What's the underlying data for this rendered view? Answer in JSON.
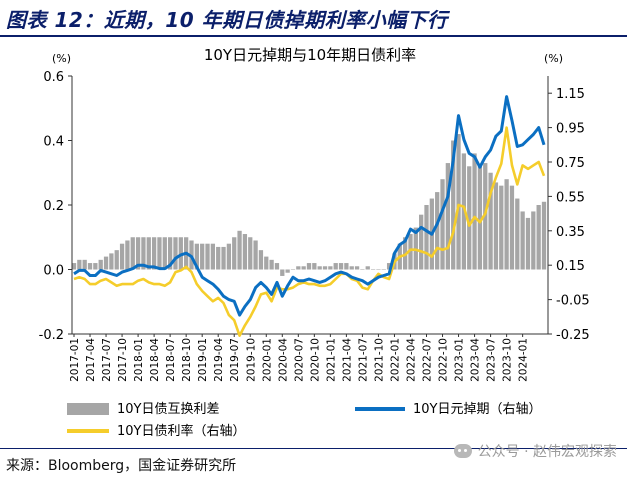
{
  "page": {
    "figure_title": "图表 12：近期，10 年期日债掉期利率小幅下行",
    "source_text": "来源：Bloomberg，国金证券研究所",
    "watermark_text": "公众号 · 赵伟宏观探索"
  },
  "colors": {
    "title": "#0b1f6a",
    "bar": "#a6a6a6",
    "swap": "#0b6fc2",
    "yield": "#f5cd2b"
  },
  "chart_data": {
    "type": "bar",
    "title": "10Y日元掉期与10年期日债利率",
    "y_left_unit": "(%)",
    "y_right_unit": "(%)",
    "y_left_range": [
      -0.2,
      0.6
    ],
    "y_left_ticks": [
      "0.6",
      "0.4",
      "0.2",
      "0.0",
      "-0.2"
    ],
    "y_left_tick_values": [
      0.6,
      0.4,
      0.2,
      0.0,
      -0.2
    ],
    "y_right_range": [
      -0.25,
      1.25
    ],
    "y_right_ticks": [
      "1.15",
      "0.95",
      "0.75",
      "0.55",
      "0.35",
      "0.15",
      "-0.05",
      "-0.25"
    ],
    "y_right_tick_values": [
      1.15,
      0.95,
      0.75,
      0.55,
      0.35,
      0.15,
      -0.05,
      -0.25
    ],
    "x_tick_labels": [
      "2017-01",
      "2017-04",
      "2017-07",
      "2017-10",
      "2018-01",
      "2018-04",
      "2018-07",
      "2018-10",
      "2019-01",
      "2019-04",
      "2019-07",
      "2019-10",
      "2020-01",
      "2020-04",
      "2020-07",
      "2020-10",
      "2021-01",
      "2021-04",
      "2021-07",
      "2021-10",
      "2022-01",
      "2022-04",
      "2022-07",
      "2022-10",
      "2023-01",
      "2023-04",
      "2023-07",
      "2023-10",
      "2024-01"
    ],
    "grid": false,
    "legend_position": "bottom",
    "x_months": [
      "2017-01",
      "2017-02",
      "2017-03",
      "2017-04",
      "2017-05",
      "2017-06",
      "2017-07",
      "2017-08",
      "2017-09",
      "2017-10",
      "2017-11",
      "2017-12",
      "2018-01",
      "2018-02",
      "2018-03",
      "2018-04",
      "2018-05",
      "2018-06",
      "2018-07",
      "2018-08",
      "2018-09",
      "2018-10",
      "2018-11",
      "2018-12",
      "2019-01",
      "2019-02",
      "2019-03",
      "2019-04",
      "2019-05",
      "2019-06",
      "2019-07",
      "2019-08",
      "2019-09",
      "2019-10",
      "2019-11",
      "2019-12",
      "2020-01",
      "2020-02",
      "2020-03",
      "2020-04",
      "2020-05",
      "2020-06",
      "2020-07",
      "2020-08",
      "2020-09",
      "2020-10",
      "2020-11",
      "2020-12",
      "2021-01",
      "2021-02",
      "2021-03",
      "2021-04",
      "2021-05",
      "2021-06",
      "2021-07",
      "2021-08",
      "2021-09",
      "2021-10",
      "2021-11",
      "2021-12",
      "2022-01",
      "2022-02",
      "2022-03",
      "2022-04",
      "2022-05",
      "2022-06",
      "2022-07",
      "2022-08",
      "2022-09",
      "2022-10",
      "2022-11",
      "2022-12",
      "2023-01",
      "2023-02",
      "2023-03",
      "2023-04",
      "2023-05",
      "2023-06",
      "2023-07",
      "2023-08",
      "2023-09",
      "2023-10",
      "2023-11",
      "2023-12",
      "2024-01",
      "2024-02",
      "2024-03",
      "2024-04",
      "2024-05"
    ],
    "series": [
      {
        "name": "10Y日债互换利差",
        "type": "bar",
        "axis": "left",
        "values": [
          0.02,
          0.03,
          0.03,
          0.02,
          0.02,
          0.03,
          0.04,
          0.05,
          0.06,
          0.08,
          0.09,
          0.1,
          0.1,
          0.1,
          0.1,
          0.1,
          0.1,
          0.1,
          0.1,
          0.1,
          0.1,
          0.1,
          0.09,
          0.08,
          0.08,
          0.08,
          0.08,
          0.07,
          0.07,
          0.08,
          0.1,
          0.12,
          0.11,
          0.1,
          0.09,
          0.06,
          0.04,
          0.03,
          0.02,
          -0.02,
          -0.01,
          0.0,
          0.01,
          0.01,
          0.02,
          0.02,
          0.01,
          0.01,
          0.01,
          0.02,
          0.02,
          0.02,
          0.01,
          0.01,
          0.0,
          0.01,
          0.0,
          0.0,
          0.0,
          0.02,
          0.05,
          0.08,
          0.1,
          0.11,
          0.13,
          0.17,
          0.2,
          0.22,
          0.24,
          0.28,
          0.33,
          0.4,
          0.42,
          0.36,
          0.32,
          0.36,
          0.32,
          0.33,
          0.3,
          0.27,
          0.26,
          0.28,
          0.26,
          0.22,
          0.18,
          0.16,
          0.18,
          0.2,
          0.21
        ]
      },
      {
        "name": "10Y日元掉期（右轴）",
        "type": "line",
        "axis": "right",
        "values": [
          0.1,
          0.12,
          0.12,
          0.09,
          0.09,
          0.12,
          0.11,
          0.1,
          0.09,
          0.11,
          0.12,
          0.13,
          0.15,
          0.15,
          0.14,
          0.14,
          0.13,
          0.13,
          0.15,
          0.19,
          0.21,
          0.22,
          0.2,
          0.14,
          0.08,
          0.06,
          0.04,
          0.01,
          -0.03,
          -0.05,
          -0.06,
          -0.14,
          -0.09,
          -0.05,
          0.02,
          0.05,
          0.02,
          -0.02,
          0.05,
          -0.03,
          0.03,
          0.08,
          0.06,
          0.06,
          0.07,
          0.06,
          0.05,
          0.06,
          0.08,
          0.1,
          0.11,
          0.1,
          0.08,
          0.07,
          0.06,
          0.04,
          0.06,
          0.08,
          0.09,
          0.1,
          0.22,
          0.27,
          0.29,
          0.36,
          0.34,
          0.37,
          0.35,
          0.33,
          0.39,
          0.47,
          0.55,
          0.76,
          1.02,
          0.88,
          0.8,
          0.78,
          0.72,
          0.78,
          0.82,
          0.9,
          0.93,
          1.13,
          0.99,
          0.84,
          0.85,
          0.88,
          0.91,
          0.95,
          0.85
        ]
      },
      {
        "name": "10Y日债利率（右轴）",
        "type": "line",
        "axis": "right",
        "values": [
          0.07,
          0.08,
          0.07,
          0.04,
          0.04,
          0.06,
          0.07,
          0.05,
          0.03,
          0.04,
          0.04,
          0.04,
          0.06,
          0.07,
          0.05,
          0.04,
          0.04,
          0.03,
          0.05,
          0.11,
          0.12,
          0.14,
          0.11,
          0.04,
          0.0,
          -0.03,
          -0.06,
          -0.04,
          -0.07,
          -0.14,
          -0.17,
          -0.26,
          -0.2,
          -0.15,
          -0.09,
          -0.02,
          -0.01,
          -0.06,
          0.02,
          0.01,
          0.01,
          0.02,
          0.04,
          0.05,
          0.04,
          0.04,
          0.03,
          0.03,
          0.04,
          0.07,
          0.1,
          0.1,
          0.07,
          0.06,
          0.02,
          0.01,
          0.06,
          0.1,
          0.08,
          0.07,
          0.17,
          0.2,
          0.21,
          0.24,
          0.24,
          0.23,
          0.22,
          0.2,
          0.25,
          0.24,
          0.25,
          0.34,
          0.5,
          0.49,
          0.38,
          0.43,
          0.4,
          0.45,
          0.57,
          0.66,
          0.74,
          0.95,
          0.73,
          0.62,
          0.73,
          0.71,
          0.73,
          0.75,
          0.67
        ]
      }
    ]
  }
}
